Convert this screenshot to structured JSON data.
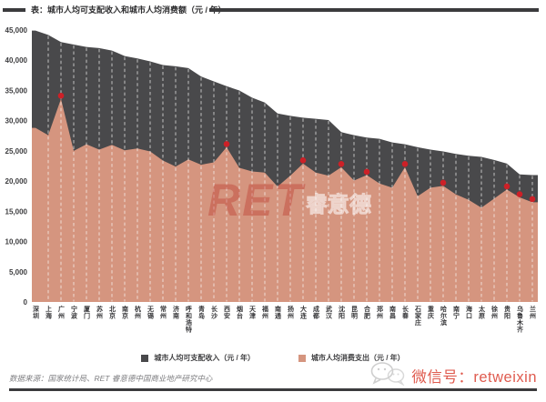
{
  "title": {
    "text": "表：城市人均可支配收入和城市人均消费额（元 / 年）"
  },
  "colors": {
    "income": "#49494b",
    "consumption": "#d5957f",
    "marker": "#cd2027",
    "rule": "#3b3b3d",
    "watermark_red": "#b92a21",
    "wechat_red": "#d93e30"
  },
  "chart_data": {
    "type": "area",
    "title": "表：城市人均可支配收入和城市人均消费额（元 / 年）",
    "xlabel": "",
    "ylabel": "",
    "ylim": [
      0,
      45000
    ],
    "ytick_step": 5000,
    "grid": false,
    "legend_position": "bottom",
    "categories": [
      "深圳",
      "上海",
      "广州",
      "宁波",
      "厦门",
      "苏州",
      "北京",
      "南京",
      "杭州",
      "无锡",
      "常州",
      "济南",
      "呼和浩特",
      "青岛",
      "长沙",
      "西安",
      "烟台",
      "天津",
      "福州",
      "南通",
      "扬州",
      "大连",
      "成都",
      "武汉",
      "沈阳",
      "昆明",
      "合肥",
      "郑州",
      "南昌",
      "长春",
      "石家庄",
      "重庆",
      "哈尔滨",
      "南宁",
      "海口",
      "太原",
      "徐州",
      "贵阳",
      "乌鲁木齐",
      "兰州"
    ],
    "series": [
      {
        "name": "城市人均可支配收入（元 / 年）",
        "values": [
          44900,
          44200,
          43000,
          42600,
          42200,
          42000,
          41600,
          40700,
          40300,
          39800,
          39200,
          39000,
          38700,
          37300,
          36500,
          35700,
          35000,
          33800,
          33000,
          31200,
          30800,
          30500,
          30300,
          30100,
          28100,
          27600,
          27200,
          27000,
          26400,
          26100,
          25600,
          25200,
          24900,
          24500,
          24200,
          24000,
          23500,
          22900,
          21100,
          21000
        ]
      },
      {
        "name": "城市人均消费支出（元 / 年）",
        "values": [
          28800,
          27600,
          33600,
          25000,
          26100,
          25200,
          26000,
          25100,
          25400,
          24900,
          23400,
          22400,
          23600,
          22700,
          23100,
          25600,
          22200,
          21600,
          21400,
          19100,
          20900,
          22900,
          21400,
          20900,
          22300,
          20100,
          21000,
          19600,
          18900,
          22300,
          17500,
          18900,
          19200,
          17800,
          16900,
          15600,
          17100,
          18600,
          17300,
          16500
        ]
      }
    ],
    "marked_cities": [
      "广州",
      "西安",
      "大连",
      "沈阳",
      "合肥",
      "长春",
      "哈尔滨",
      "贵阳",
      "乌鲁木齐",
      "兰州"
    ],
    "yticks": [
      {
        "label": "45,000",
        "value": 45000
      },
      {
        "label": "40,000",
        "value": 40000
      },
      {
        "label": "35,000",
        "value": 35000
      },
      {
        "label": "30,000",
        "value": 30000
      },
      {
        "label": "25,000",
        "value": 25000
      },
      {
        "label": "20,000",
        "value": 20000
      },
      {
        "label": "15,000",
        "value": 15000
      },
      {
        "label": "10,000",
        "value": 10000
      },
      {
        "label": "5,000",
        "value": 5000
      },
      {
        "label": "0",
        "value": 0
      }
    ]
  },
  "legend": {
    "items": [
      {
        "label": "城市人均可支配收入（元 / 年）",
        "color": "#49494b"
      },
      {
        "label": "城市人均消费支出（元 / 年）",
        "color": "#d5957f"
      }
    ]
  },
  "watermark": {
    "text_en": "RET",
    "text_cn": "睿意德"
  },
  "footer": {
    "source": "数据来源：国家统计局、RET 睿意德中国商业地产研究中心",
    "wechat": "微信号：retweixin"
  }
}
